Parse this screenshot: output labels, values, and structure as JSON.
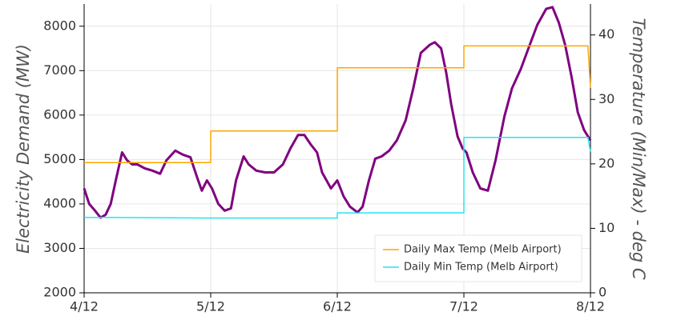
{
  "chart_data": {
    "type": "line",
    "y_label": "Electricity Demand (MW)",
    "y2_label": "Temperature (Min/Max) - deg C",
    "xlim": [
      0,
      4
    ],
    "xticks": [
      {
        "value": 0,
        "label": "4/12"
      },
      {
        "value": 1,
        "label": "5/12"
      },
      {
        "value": 2,
        "label": "6/12"
      },
      {
        "value": 3,
        "label": "7/12"
      },
      {
        "value": 4,
        "label": "8/12"
      }
    ],
    "ylim": [
      2000,
      8500
    ],
    "yticks": [
      2000,
      3000,
      4000,
      5000,
      6000,
      7000,
      8000
    ],
    "y2lim": [
      0,
      44.8
    ],
    "y2ticks": [
      0,
      10,
      20,
      30,
      40
    ],
    "grid": true,
    "legend": "bottom-right",
    "series": [
      {
        "name": "Electricity Demand",
        "color": "#800080",
        "legend": false,
        "x": [
          0,
          0.04,
          0.08,
          0.13,
          0.17,
          0.21,
          0.25,
          0.3,
          0.34,
          0.38,
          0.42,
          0.48,
          0.54,
          0.6,
          0.65,
          0.72,
          0.78,
          0.84,
          0.89,
          0.93,
          0.97,
          1.01,
          1.06,
          1.11,
          1.16,
          1.2,
          1.26,
          1.3,
          1.36,
          1.43,
          1.5,
          1.57,
          1.63,
          1.69,
          1.74,
          1.79,
          1.84,
          1.88,
          1.95,
          2.0,
          2.05,
          2.1,
          2.16,
          2.2,
          2.25,
          2.3,
          2.35,
          2.41,
          2.47,
          2.54,
          2.6,
          2.66,
          2.73,
          2.77,
          2.82,
          2.86,
          2.9,
          2.95,
          2.99,
          3.02,
          3.07,
          3.13,
          3.19,
          3.25,
          3.32,
          3.38,
          3.45,
          3.52,
          3.58,
          3.65,
          3.7,
          3.75,
          3.8,
          3.85,
          3.9,
          3.95,
          4.0
        ],
        "values": [
          4350,
          4000,
          3870,
          3690,
          3760,
          4000,
          4530,
          5160,
          4980,
          4890,
          4890,
          4800,
          4750,
          4680,
          4980,
          5200,
          5110,
          5050,
          4620,
          4300,
          4530,
          4350,
          4000,
          3850,
          3900,
          4530,
          5070,
          4890,
          4750,
          4710,
          4710,
          4890,
          5250,
          5550,
          5550,
          5340,
          5160,
          4710,
          4350,
          4530,
          4170,
          3940,
          3810,
          3940,
          4530,
          5020,
          5070,
          5200,
          5430,
          5880,
          6600,
          7400,
          7580,
          7640,
          7500,
          6960,
          6240,
          5520,
          5250,
          5160,
          4710,
          4350,
          4300,
          4980,
          5970,
          6600,
          7040,
          7580,
          8030,
          8390,
          8430,
          8080,
          7580,
          6870,
          6060,
          5660,
          5430
        ]
      },
      {
        "name": "Daily Max Temp (Melb Airport)",
        "color": "#ffa500",
        "axis": "y2",
        "x": [
          0,
          1,
          1,
          2,
          2,
          3,
          3,
          3.98,
          4.0
        ],
        "values": [
          20.2,
          20.2,
          25.1,
          25.1,
          34.9,
          34.9,
          38.3,
          38.3,
          31.8
        ]
      },
      {
        "name": "Daily Min Temp (Melb Airport)",
        "color": "#22e6f0",
        "axis": "y2",
        "x": [
          0,
          1,
          1,
          2,
          2,
          3,
          3,
          3.98,
          4.0
        ],
        "values": [
          11.7,
          11.6,
          11.6,
          11.6,
          12.4,
          12.4,
          24.1,
          24.1,
          21.9
        ]
      }
    ]
  }
}
